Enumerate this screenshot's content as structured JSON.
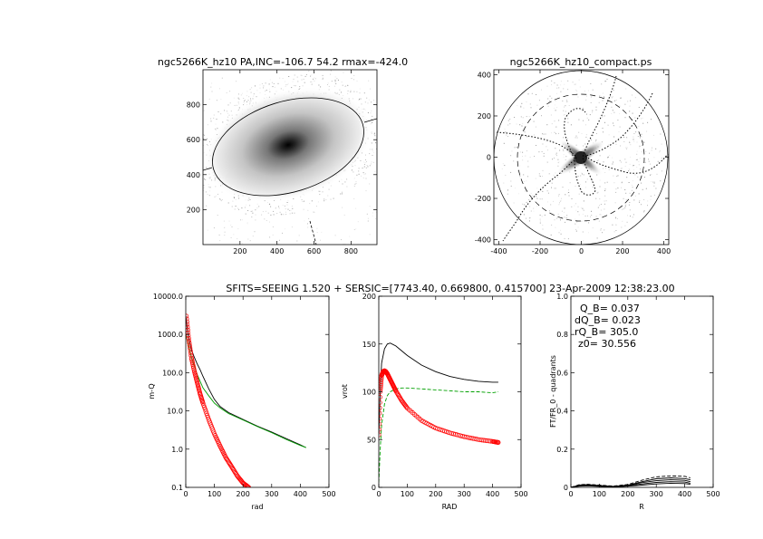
{
  "header": {
    "title": "SFITS=SEEING 1.520 + SERSIC=[7743.40, 0.669800, 0.415700]  23-Apr-2009 12:38:23.00"
  },
  "panels": {
    "image": {
      "title": "ngc5266K_hz10 PA,INC=-106.7 54.2 rmax=-424.0"
    },
    "deproj": {
      "title": "ngc5266K_hz10_compact.ps"
    },
    "annotation": {
      "q_b": "Q_B=  0.037",
      "dq_b": "dQ_B=  0.023",
      "rq_b": "rQ_B=  305.0",
      "z0": "z0= 30.556"
    }
  },
  "colors": {
    "axis": "#000000",
    "series_total": "#000000",
    "series_disk": "#00a000",
    "series_bulge": "#ff0000",
    "image_dark": "#000000",
    "image_light": "#ffffff"
  },
  "chart_data": [
    {
      "type": "scatter",
      "id": "image",
      "title": "ngc5266K_hz10 PA,INC=-106.7 54.2 rmax=-424.0",
      "xlabel": "",
      "ylabel": "",
      "xlim": [
        0,
        940
      ],
      "ylim": [
        0,
        1000
      ],
      "xticks": [
        200,
        400,
        600,
        800
      ],
      "yticks": [
        200,
        400,
        600,
        800
      ],
      "ellipse": {
        "center": [
          462,
          545
        ],
        "semi_major": 424,
        "semi_minor": 248,
        "angle_deg": 16.7
      },
      "peak": [
        462,
        545
      ]
    },
    {
      "type": "scatter",
      "id": "deproj",
      "title": "ngc5266K_hz10_compact.ps",
      "xlabel": "",
      "ylabel": "",
      "xlim": [
        -424,
        424
      ],
      "ylim": [
        -424,
        424
      ],
      "xticks": [
        -400,
        -200,
        0,
        200,
        400
      ],
      "yticks": [
        -400,
        -200,
        0,
        200,
        400
      ],
      "outer_circle_radius": 424,
      "dashed_circle_radius": 305
    },
    {
      "type": "line",
      "id": "density",
      "xlabel": "rad",
      "ylabel": "m-Q",
      "xlim": [
        0,
        500
      ],
      "ylim": [
        0.1,
        10000
      ],
      "yscale": "log",
      "xticks": [
        0,
        100,
        200,
        300,
        400,
        500
      ],
      "yticks": [
        "0.1",
        "1.0",
        "10.0",
        "100.0",
        "1000.0",
        "10000.0"
      ],
      "series": [
        {
          "color": "black",
          "x": [
            0,
            5,
            10,
            20,
            30,
            40,
            50,
            60,
            80,
            100,
            120,
            150,
            200,
            250,
            300,
            350,
            400,
            420
          ],
          "y": [
            3000,
            1500,
            800,
            400,
            250,
            170,
            120,
            80,
            38,
            20,
            13,
            9,
            6,
            4,
            2.8,
            1.9,
            1.3,
            1.1
          ]
        },
        {
          "color": "green",
          "x": [
            0,
            5,
            10,
            20,
            30,
            40,
            50,
            60,
            80,
            100,
            120,
            150,
            200,
            250,
            300,
            350,
            400,
            420
          ],
          "y": [
            1000,
            700,
            500,
            250,
            150,
            90,
            60,
            40,
            25,
            16,
            12,
            8.5,
            5.8,
            3.9,
            2.7,
            1.8,
            1.25,
            1.1
          ]
        },
        {
          "color": "red",
          "marker": "o",
          "x": [
            2,
            10,
            20,
            30,
            40,
            50,
            60,
            80,
            100,
            120,
            140,
            160,
            180,
            200,
            220
          ],
          "y": [
            3000,
            800,
            240,
            110,
            55,
            28,
            16,
            6,
            2.5,
            1.2,
            0.6,
            0.35,
            0.2,
            0.13,
            0.1
          ]
        }
      ]
    },
    {
      "type": "line",
      "id": "rotation",
      "xlabel": "RAD",
      "ylabel": "vrot",
      "xlim": [
        0,
        500
      ],
      "ylim": [
        0,
        200
      ],
      "xticks": [
        0,
        100,
        200,
        300,
        400,
        500
      ],
      "yticks": [
        0,
        50,
        100,
        150,
        200
      ],
      "series": [
        {
          "color": "black",
          "x": [
            0,
            5,
            10,
            20,
            30,
            40,
            60,
            80,
            100,
            150,
            200,
            250,
            300,
            350,
            400,
            420
          ],
          "y": [
            55,
            100,
            130,
            145,
            150,
            151,
            148,
            143,
            138,
            128,
            121,
            116,
            113,
            111,
            110,
            110
          ]
        },
        {
          "color": "green",
          "dash": true,
          "x": [
            0,
            5,
            10,
            20,
            30,
            40,
            60,
            80,
            100,
            150,
            200,
            250,
            300,
            350,
            400,
            420
          ],
          "y": [
            5,
            40,
            65,
            87,
            96,
            100,
            103,
            104,
            104,
            103,
            102,
            101,
            100,
            100,
            99,
            100
          ]
        },
        {
          "color": "red",
          "marker": "o",
          "x": [
            0,
            5,
            10,
            15,
            20,
            25,
            30,
            40,
            50,
            60,
            80,
            100,
            150,
            200,
            250,
            300,
            350,
            400,
            420
          ],
          "y": [
            55,
            100,
            117,
            121,
            122,
            121,
            119,
            113,
            107,
            101,
            91,
            83,
            70,
            62,
            57,
            53,
            50,
            48,
            47
          ]
        }
      ]
    },
    {
      "type": "line",
      "id": "torque",
      "xlabel": "R",
      "ylabel": "FT/FR_0 - quadrants",
      "xlim": [
        0,
        500
      ],
      "ylim": [
        0,
        1.0
      ],
      "xticks": [
        0,
        100,
        200,
        300,
        400,
        500
      ],
      "yticks": [
        "0",
        "0.2",
        "0.4",
        "0.6",
        "0.8",
        "1.0"
      ],
      "series": [
        {
          "color": "black",
          "x": [
            0,
            30,
            60,
            100,
            150,
            200,
            250,
            300,
            350,
            400,
            420
          ],
          "y": [
            0.0,
            0.01,
            0.012,
            0.008,
            0.004,
            0.01,
            0.025,
            0.035,
            0.04,
            0.037,
            0.03
          ]
        },
        {
          "color": "black",
          "x": [
            0,
            30,
            60,
            100,
            150,
            200,
            250,
            300,
            350,
            400,
            420
          ],
          "y": [
            0.0,
            0.008,
            0.01,
            0.006,
            0.003,
            0.008,
            0.018,
            0.026,
            0.03,
            0.028,
            0.022
          ]
        },
        {
          "color": "black",
          "x": [
            0,
            30,
            60,
            100,
            150,
            200,
            250,
            300,
            350,
            400,
            420
          ],
          "y": [
            0.0,
            0.012,
            0.014,
            0.01,
            0.005,
            0.012,
            0.03,
            0.045,
            0.05,
            0.046,
            0.04
          ]
        },
        {
          "color": "black",
          "x": [
            0,
            30,
            60,
            100,
            150,
            200,
            250,
            300,
            350,
            400,
            420
          ],
          "y": [
            0.0,
            0.006,
            0.008,
            0.005,
            0.002,
            0.006,
            0.012,
            0.018,
            0.022,
            0.02,
            0.016
          ]
        },
        {
          "color": "black",
          "dash": true,
          "x": [
            0,
            30,
            60,
            100,
            150,
            200,
            250,
            300,
            350,
            400,
            420
          ],
          "y": [
            0.0,
            0.014,
            0.016,
            0.012,
            0.007,
            0.015,
            0.038,
            0.055,
            0.06,
            0.058,
            0.05
          ]
        }
      ]
    }
  ]
}
